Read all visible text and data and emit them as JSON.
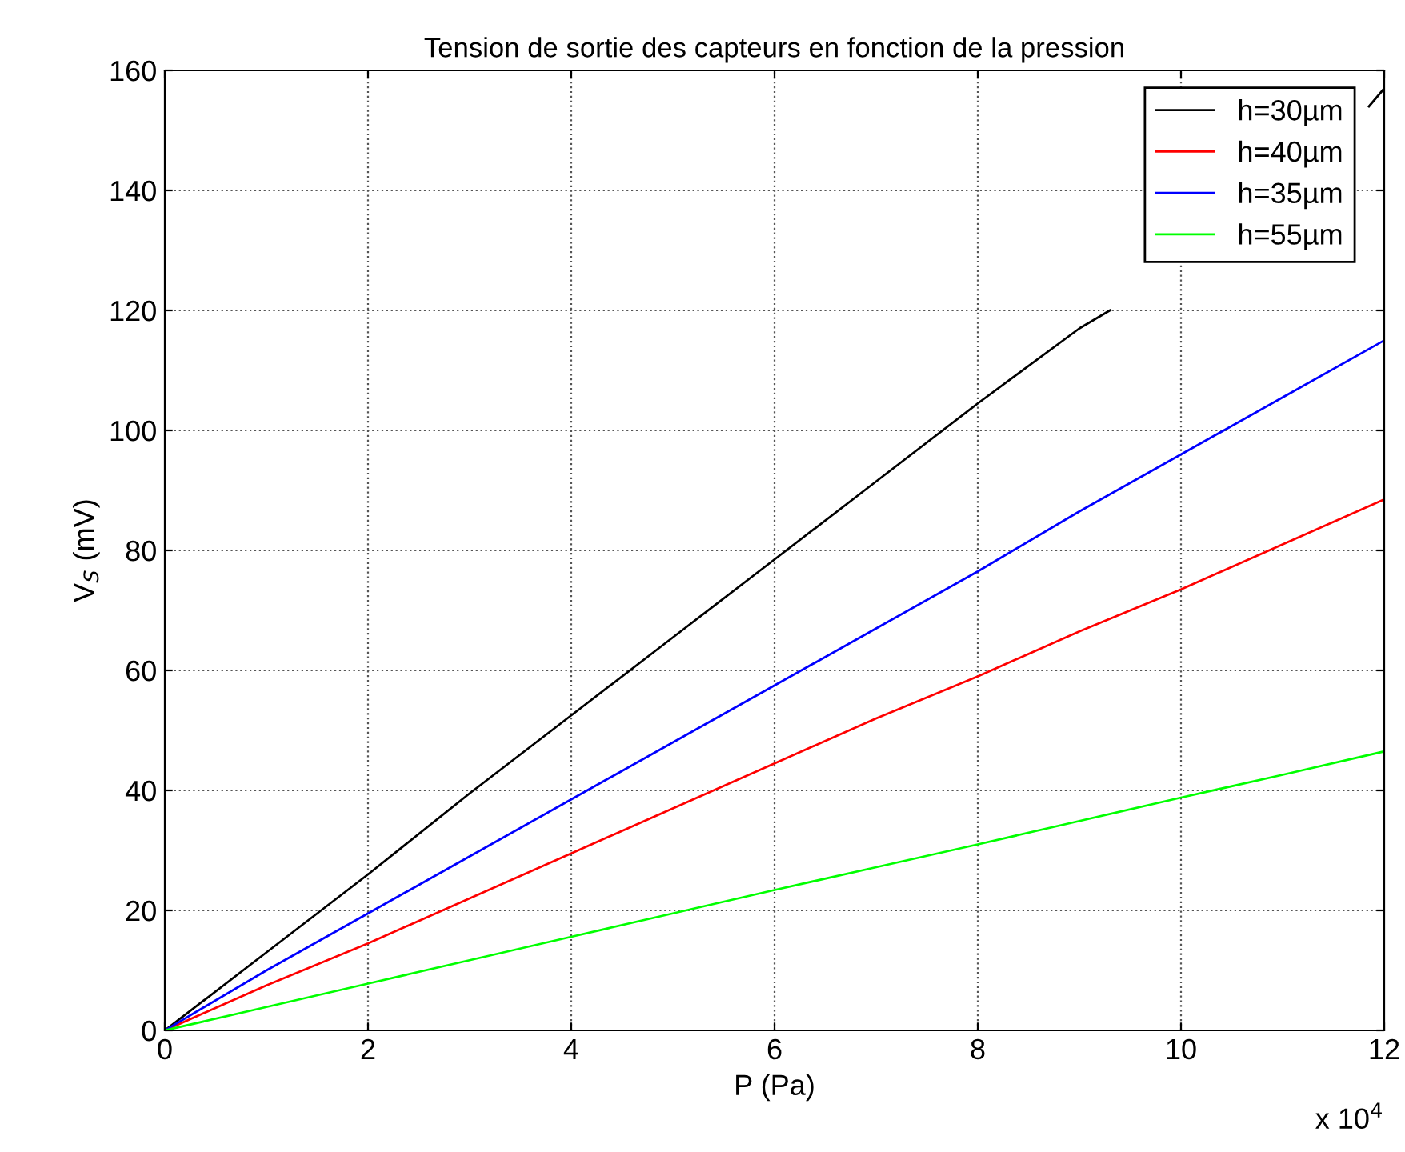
{
  "chart_data": {
    "type": "line",
    "title": "Tension de sortie des capteurs en fonction de la pression",
    "xlabel": "P (Pa)",
    "ylabel": "V$_{S}$ (mV)",
    "x": [
      0,
      1,
      2,
      3,
      4,
      5,
      6,
      7,
      8,
      9,
      10,
      11,
      12
    ],
    "series": [
      {
        "name": "h=30µm",
        "color": "#000000",
        "x": [
          0,
          1,
          2,
          3,
          4,
          5,
          6,
          7,
          8,
          9,
          9.3,
          10,
          11,
          11.85,
          12
        ],
        "values": [
          0,
          13,
          26,
          39.5,
          52.5,
          65.5,
          78.5,
          91.5,
          104.5,
          117,
          120,
          null,
          null,
          154,
          157
        ]
      },
      {
        "name": "h=40µm",
        "color": "#ff0000",
        "values": [
          0,
          7.5,
          14.5,
          22,
          29.5,
          37,
          44.5,
          52,
          59,
          66.5,
          73.5,
          81,
          88.5
        ]
      },
      {
        "name": "h=35µm",
        "color": "#0000ff",
        "values": [
          0,
          10,
          19.5,
          29,
          38.5,
          48,
          57.5,
          67,
          76.5,
          86.5,
          96,
          105.5,
          115
        ]
      },
      {
        "name": "h=55µm",
        "color": "#00ff00",
        "values": [
          0,
          3.9,
          7.8,
          11.7,
          15.6,
          19.5,
          23.4,
          27.2,
          31,
          34.9,
          38.8,
          42.6,
          46.5
        ]
      }
    ],
    "xlim": [
      0,
      12
    ],
    "ylim": [
      0,
      160
    ],
    "xticks": [
      0,
      2,
      4,
      6,
      8,
      10,
      12
    ],
    "yticks": [
      0,
      20,
      40,
      60,
      80,
      100,
      120,
      140,
      160
    ],
    "annotations": [
      "x 10$^{4}$"
    ],
    "grid": true,
    "legend": "top right",
    "line_style": "solid",
    "marker": "none"
  }
}
